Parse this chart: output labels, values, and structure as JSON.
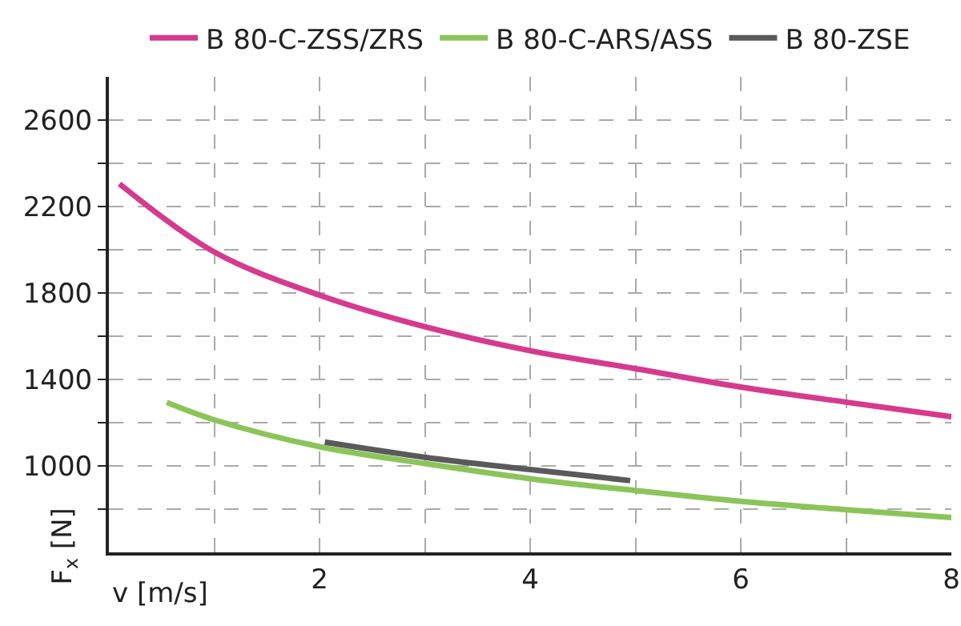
{
  "chart_data": {
    "type": "line",
    "xlabel": "v [m/s]",
    "ylabel": "F$_{x}$ [N]",
    "xlim": [
      0,
      8
    ],
    "xticks": [
      {
        "value": 1,
        "label": null
      },
      2,
      {
        "value": 3,
        "label": null
      },
      4,
      {
        "value": 5,
        "label": null
      },
      6,
      {
        "value": 7,
        "label": null
      },
      8
    ],
    "ylim": [
      600,
      2800
    ],
    "yticks": [
      {
        "value": 800,
        "label": null
      },
      1000,
      {
        "value": 1200,
        "label": null
      },
      1400,
      {
        "value": 1600,
        "label": null
      },
      1800,
      {
        "value": 2000,
        "label": null
      },
      2200,
      {
        "value": 2400,
        "label": null
      },
      2600
    ],
    "grid": true,
    "legend": "top",
    "marker": "none",
    "line_style": "solid",
    "series": [
      {
        "name": "B 80-C-ZSS/ZRS",
        "color": "#d63a8e",
        "x": [
          0.1,
          1,
          2,
          3,
          4,
          5,
          6,
          7,
          8
        ],
        "values": [
          2305,
          1990,
          1790,
          1644,
          1533,
          1450,
          1365,
          1295,
          1228
        ]
      },
      {
        "name": "B 80-C-ARS/ASS",
        "color": "#8cc45a",
        "x": [
          0.55,
          1,
          2,
          3,
          4,
          5,
          6,
          7,
          8
        ],
        "values": [
          1294,
          1213,
          1089,
          1011,
          941,
          886,
          836,
          797,
          761
        ]
      },
      {
        "name": "B 80-ZSE",
        "color": "#5a5a5c",
        "x": [
          2.05,
          3,
          4,
          4.95
        ],
        "values": [
          1110,
          1040,
          983,
          932
        ]
      }
    ]
  }
}
